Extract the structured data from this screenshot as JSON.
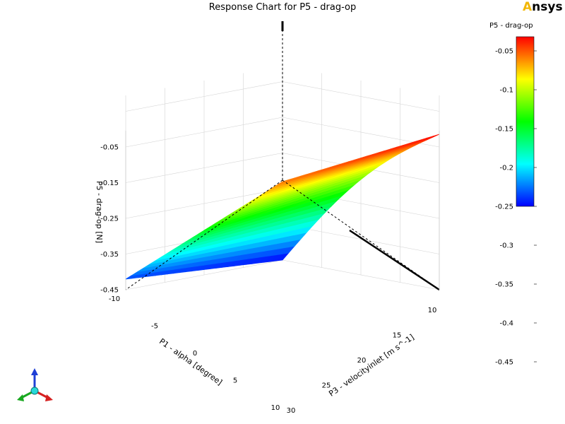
{
  "title": "Response Chart for P5 - drag-op",
  "brand": {
    "mark": "A",
    "rest": "nsys",
    "accent_color": "#f2b705"
  },
  "legend": {
    "title": "P5 - drag-op",
    "ticks": [
      "-0.05",
      "-0.1",
      "-0.15",
      "-0.2",
      "-0.25",
      "-0.3",
      "-0.35",
      "-0.4",
      "-0.45"
    ]
  },
  "chart_data": {
    "type": "surface",
    "x": {
      "label": "P1 - alpha  [degree]",
      "ticks": [
        "-10",
        "-5",
        "0",
        "5",
        "10"
      ],
      "range": [
        -10,
        10
      ]
    },
    "y": {
      "label": "P3 - velocityinlet  [m s^-1]",
      "ticks": [
        "10",
        "15",
        "20",
        "25",
        "30"
      ],
      "range": [
        10,
        30
      ]
    },
    "z": {
      "label": "P5 - drag-op  [N]",
      "ticks": [
        "-0.05",
        "-0.15",
        "-0.25",
        "-0.35",
        "-0.45"
      ],
      "range": [
        -0.45,
        -0.01
      ]
    },
    "corners": [
      {
        "alpha": -10,
        "velocity": 10,
        "drag": -0.45
      },
      {
        "alpha": 10,
        "velocity": 10,
        "drag": -0.01
      },
      {
        "alpha": 10,
        "velocity": 30,
        "drag": -0.06
      },
      {
        "alpha": -10,
        "velocity": 30,
        "drag": -0.42
      }
    ],
    "grid": true,
    "colormap": "rainbow"
  }
}
